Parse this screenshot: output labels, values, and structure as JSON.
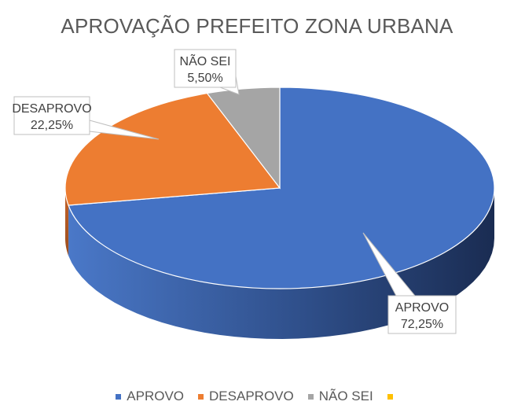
{
  "chart_data": {
    "type": "pie",
    "title": "APROVAÇÃO PREFEITO ZONA URBANA",
    "categories": [
      "APROVO",
      "DESAPROVO",
      "NÃO SEI",
      ""
    ],
    "values": [
      72.25,
      22.25,
      5.5,
      0
    ],
    "data_labels": [
      "72,25%",
      "22,25%",
      "5,50%",
      ""
    ],
    "colors": [
      "#4472C4",
      "#ED7D31",
      "#A5A5A5",
      "#FFC000"
    ],
    "legend_position": "bottom",
    "style": "3d"
  }
}
